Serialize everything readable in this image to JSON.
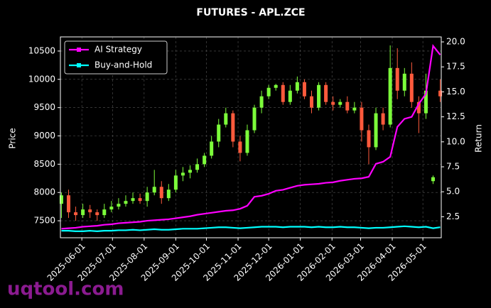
{
  "chart_data": {
    "type": "candlestick",
    "title": "FUTURES - APL.ZCE",
    "ylabel": "Price",
    "y2label": "Return",
    "x": [
      "2025-05-12",
      "2025-05-19",
      "2025-05-26",
      "2025-06-02",
      "2025-06-09",
      "2025-06-16",
      "2025-06-23",
      "2025-06-30",
      "2025-07-07",
      "2025-07-14",
      "2025-07-21",
      "2025-07-28",
      "2025-08-04",
      "2025-08-11",
      "2025-08-18",
      "2025-08-25",
      "2025-09-01",
      "2025-09-08",
      "2025-09-15",
      "2025-09-22",
      "2025-09-29",
      "2025-10-06",
      "2025-10-13",
      "2025-10-20",
      "2025-10-27",
      "2025-11-03",
      "2025-11-10",
      "2025-11-17",
      "2025-11-24",
      "2025-12-01",
      "2025-12-08",
      "2025-12-15",
      "2025-12-22",
      "2025-12-29",
      "2026-01-05",
      "2026-01-12",
      "2026-01-19",
      "2026-01-26",
      "2026-02-02",
      "2026-02-09",
      "2026-02-16",
      "2026-02-23",
      "2026-03-02",
      "2026-03-09",
      "2026-03-16",
      "2026-03-23",
      "2026-03-30",
      "2026-04-06",
      "2026-04-13",
      "2026-04-20",
      "2026-04-27",
      "2026-05-04",
      "2026-05-11",
      "2026-05-18"
    ],
    "open": [
      7800,
      7950,
      7650,
      7600,
      7700,
      7650,
      7600,
      7700,
      7750,
      7800,
      7850,
      7900,
      7850,
      8000,
      8100,
      7900,
      8050,
      8300,
      8350,
      8400,
      8500,
      8650,
      8900,
      9200,
      9400,
      8900,
      8700,
      9100,
      9500,
      9700,
      9850,
      9900,
      9600,
      9800,
      9950,
      9700,
      9500,
      9900,
      9600,
      9550,
      9600,
      9450,
      9500,
      9100,
      8800,
      9400,
      9200,
      10200,
      9800,
      10100,
      9600,
      9400,
      8200,
      9800
    ],
    "high": [
      8000,
      8050,
      7750,
      7800,
      7780,
      7700,
      7800,
      7850,
      7900,
      7950,
      8000,
      7980,
      8100,
      8400,
      8200,
      8150,
      8400,
      8450,
      8480,
      8600,
      8700,
      9000,
      9300,
      9500,
      9450,
      9000,
      9200,
      9550,
      9800,
      9900,
      9920,
      9950,
      9900,
      10050,
      10000,
      9800,
      9950,
      9950,
      9700,
      9650,
      9700,
      9600,
      9600,
      9200,
      9500,
      9500,
      10600,
      10550,
      10200,
      10300,
      9700,
      10100,
      8300,
      10000
    ],
    "low": [
      7550,
      7550,
      7500,
      7550,
      7550,
      7500,
      7550,
      7650,
      7700,
      7750,
      7800,
      7800,
      7750,
      7950,
      7800,
      7850,
      8000,
      8200,
      8250,
      8350,
      8450,
      8600,
      8800,
      9150,
      8800,
      8550,
      8650,
      9050,
      9400,
      9650,
      9800,
      9550,
      9550,
      9750,
      9650,
      9400,
      9450,
      9550,
      9450,
      9500,
      9400,
      9400,
      8900,
      8500,
      8750,
      9100,
      9150,
      9650,
      9700,
      9500,
      9050,
      9300,
      8150,
      9600
    ],
    "close": [
      7950,
      7650,
      7600,
      7700,
      7650,
      7600,
      7700,
      7750,
      7800,
      7850,
      7900,
      7850,
      8000,
      8100,
      7900,
      8050,
      8300,
      8350,
      8400,
      8500,
      8650,
      8900,
      9200,
      9400,
      8900,
      8700,
      9100,
      9500,
      9700,
      9850,
      9900,
      9600,
      9800,
      9950,
      9700,
      9500,
      9900,
      9600,
      9550,
      9600,
      9450,
      9500,
      9100,
      8800,
      9400,
      9200,
      10200,
      9800,
      10100,
      9600,
      9400,
      9800,
      8270,
      9700
    ],
    "up_color": "#7cfc3a",
    "down_color": "#ff5a3c",
    "series": [
      {
        "name": "AI Strategy",
        "color": "#ff00ff",
        "axis": "y2",
        "values": [
          1.3,
          1.35,
          1.4,
          1.5,
          1.55,
          1.6,
          1.7,
          1.75,
          1.85,
          1.9,
          1.95,
          2.0,
          2.1,
          2.15,
          2.2,
          2.25,
          2.35,
          2.45,
          2.55,
          2.7,
          2.8,
          2.9,
          3.0,
          3.1,
          3.15,
          3.3,
          3.6,
          4.5,
          4.6,
          4.8,
          5.1,
          5.2,
          5.4,
          5.6,
          5.7,
          5.75,
          5.8,
          5.9,
          5.95,
          6.1,
          6.2,
          6.3,
          6.35,
          6.5,
          7.8,
          8.0,
          8.5,
          11.5,
          12.3,
          12.5,
          13.8,
          14.8,
          19.6,
          18.7
        ]
      },
      {
        "name": "Buy-and-Hold",
        "color": "#00ffff",
        "axis": "y2",
        "values": [
          1.1,
          1.1,
          1.05,
          1.05,
          1.1,
          1.05,
          1.1,
          1.1,
          1.15,
          1.15,
          1.2,
          1.15,
          1.2,
          1.25,
          1.2,
          1.2,
          1.25,
          1.3,
          1.3,
          1.3,
          1.35,
          1.4,
          1.45,
          1.45,
          1.4,
          1.35,
          1.4,
          1.45,
          1.5,
          1.5,
          1.5,
          1.45,
          1.5,
          1.5,
          1.5,
          1.45,
          1.5,
          1.45,
          1.45,
          1.5,
          1.45,
          1.45,
          1.4,
          1.35,
          1.4,
          1.4,
          1.45,
          1.5,
          1.55,
          1.5,
          1.45,
          1.5,
          1.35,
          1.45
        ]
      }
    ],
    "xlim": [
      "2025-05-11",
      "2026-05-19"
    ],
    "xticks": [
      "2025-06-01",
      "2025-07-01",
      "2025-08-01",
      "2025-09-01",
      "2025-10-01",
      "2025-11-01",
      "2025-12-01",
      "2026-01-01",
      "2026-02-01",
      "2026-03-01",
      "2026-04-01",
      "2026-05-01"
    ],
    "ylim": [
      7200,
      10750
    ],
    "yticks": [
      7500,
      8000,
      8500,
      9000,
      9500,
      10000,
      10500
    ],
    "y2lim": [
      0.4,
      20.5
    ],
    "y2ticks": [
      2.5,
      {
        "value": 5,
        "label": "5.0"
      },
      7.5,
      {
        "value": 10,
        "label": "10.0"
      },
      12.5,
      {
        "value": 15,
        "label": "15.0"
      },
      17.5,
      {
        "value": 20,
        "label": "20.0"
      }
    ],
    "grid": true,
    "legend": "upper left"
  },
  "watermark": "uqtool.com"
}
